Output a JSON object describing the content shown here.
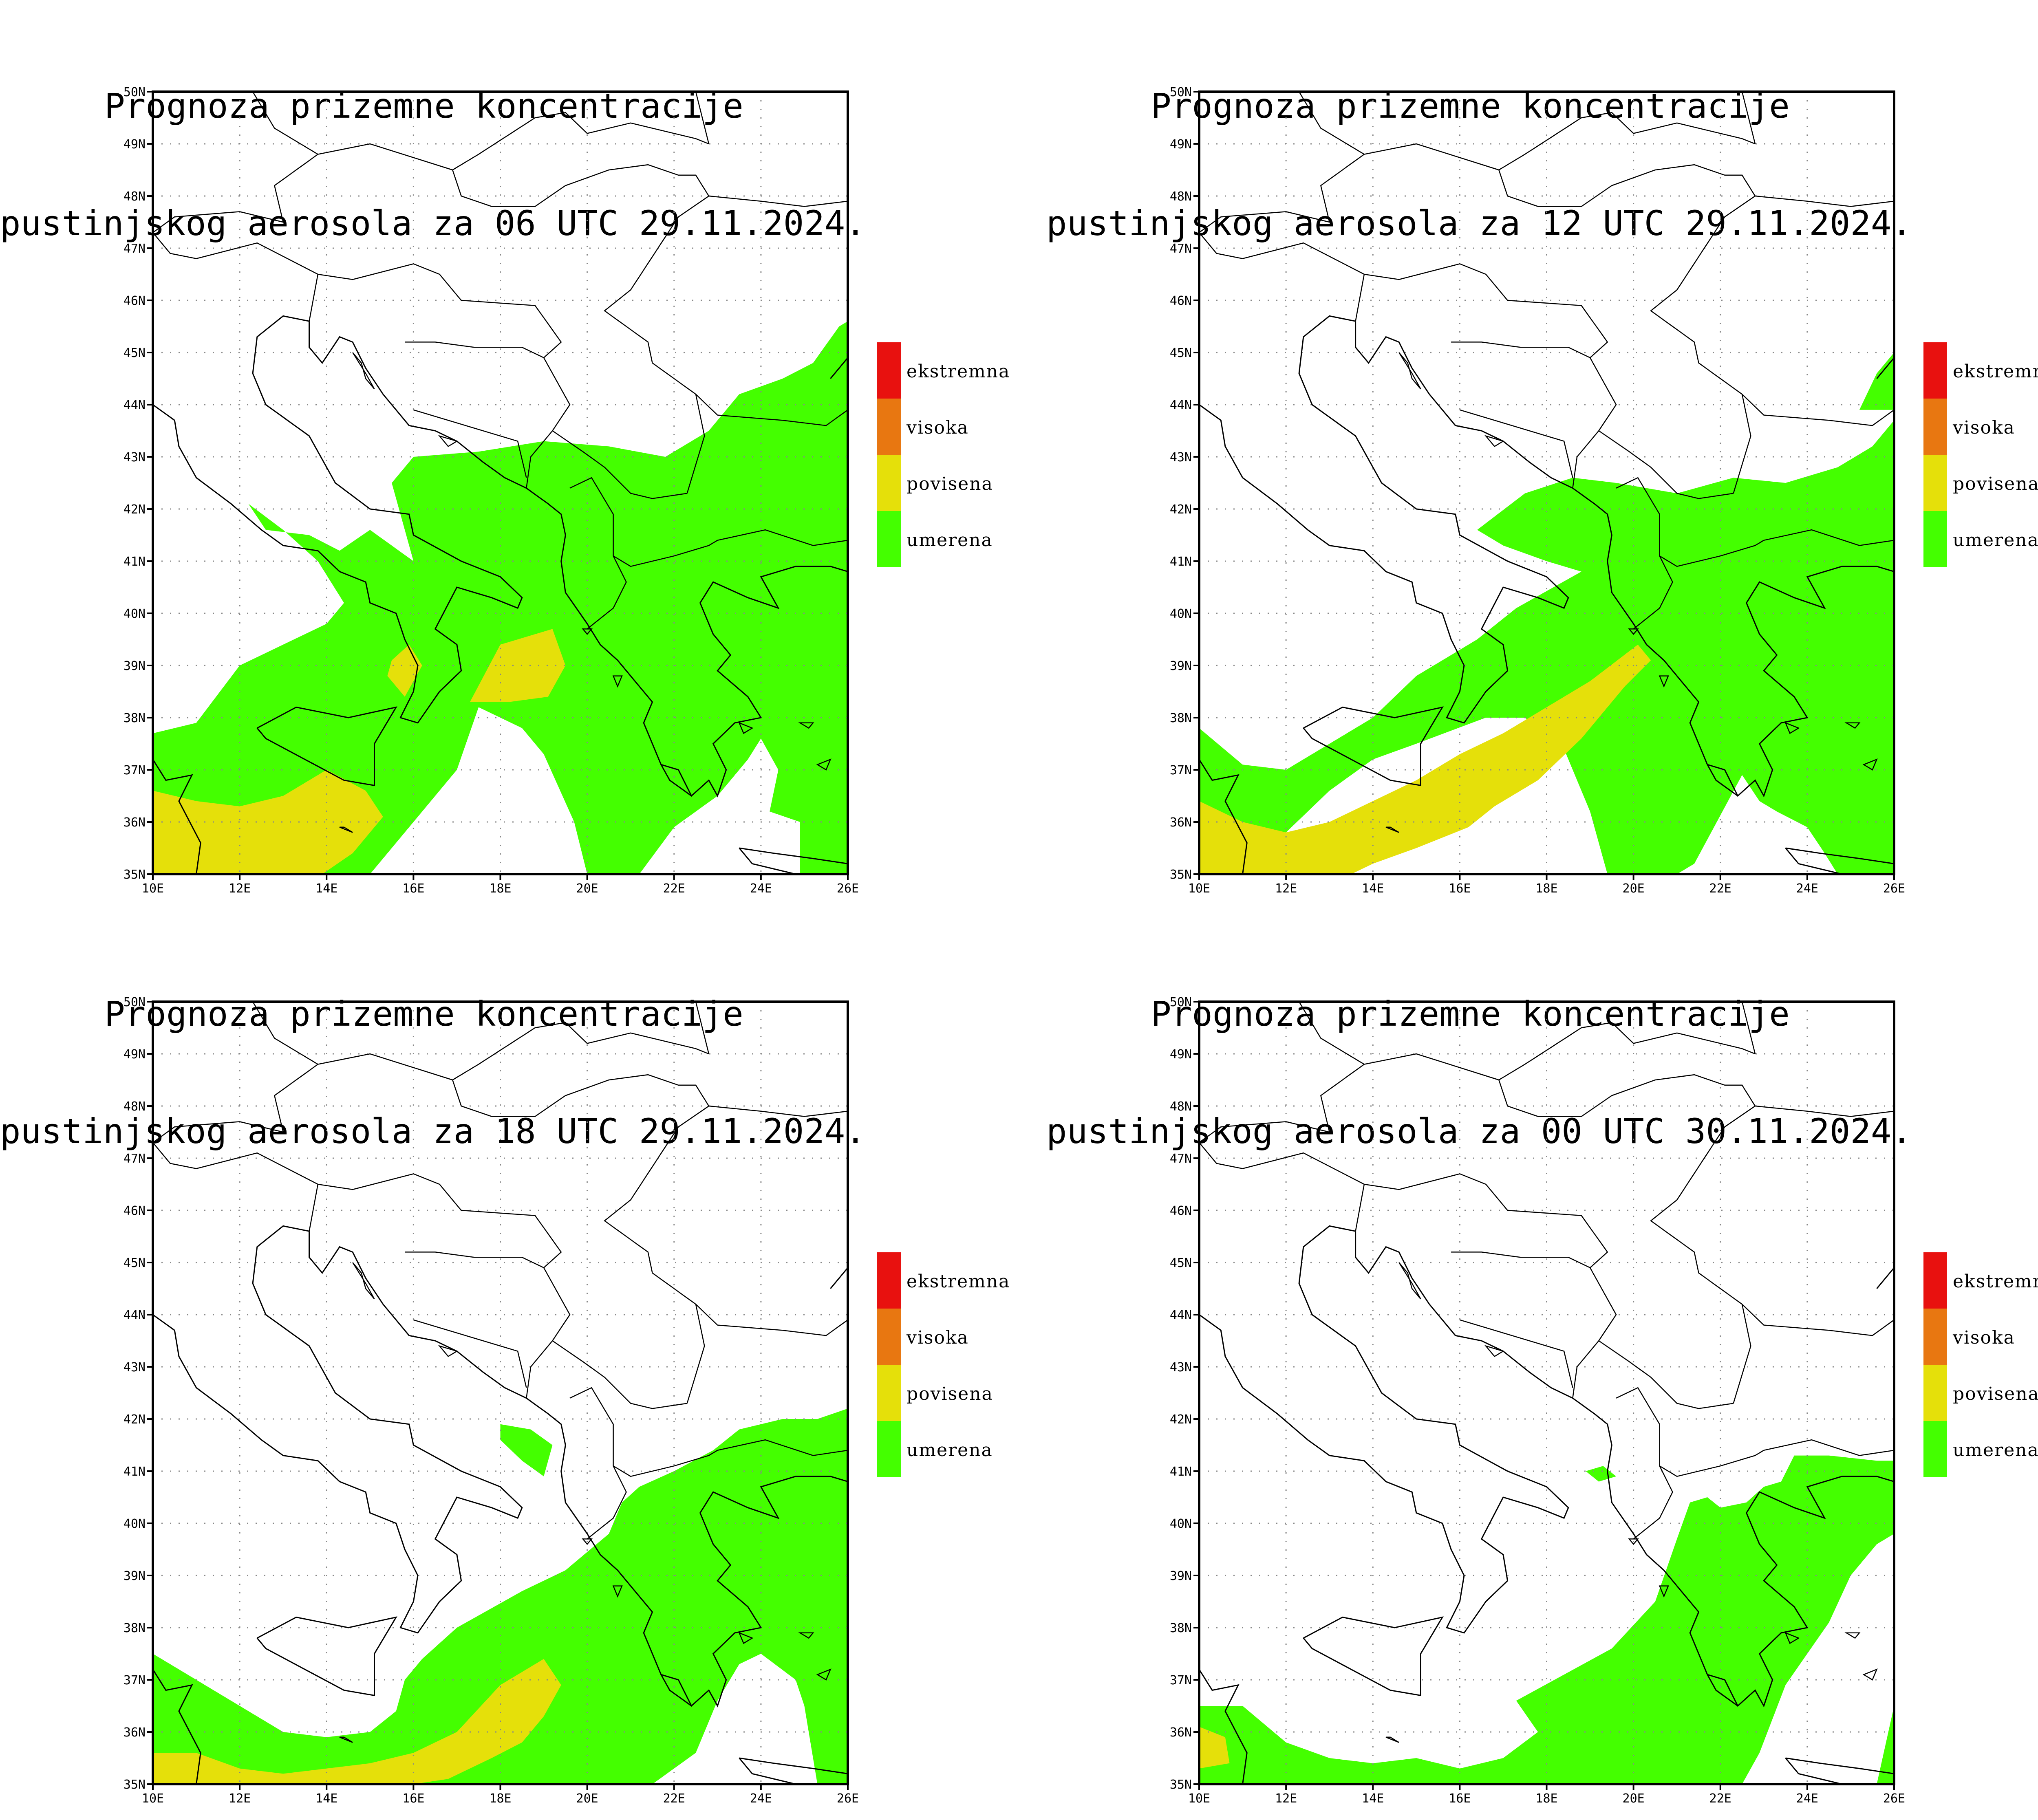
{
  "panels": [
    {
      "title_line1": "Prognoza prizemne koncentracije",
      "title_line2": "pustinjskog aerosola za 06 UTC 29.11.2024."
    },
    {
      "title_line1": "Prognoza prizemne koncentracije",
      "title_line2": "pustinjskog aerosola za 12 UTC 29.11.2024."
    },
    {
      "title_line1": "Prognoza prizemne koncentracije",
      "title_line2": "pustinjskog aerosola za 18 UTC 29.11.2024."
    },
    {
      "title_line1": "Prognoza prizemne koncentracije",
      "title_line2": "pustinjskog aerosola za 00 UTC 30.11.2024."
    }
  ],
  "legend": [
    {
      "label": "ekstremna",
      "color": "#e8110f"
    },
    {
      "label": "visoka",
      "color": "#e87711"
    },
    {
      "label": "povisena",
      "color": "#e5e00a"
    },
    {
      "label": "umerena",
      "color": "#44ff00"
    }
  ],
  "axes": {
    "lat_labels": [
      "35N",
      "36N",
      "37N",
      "38N",
      "39N",
      "40N",
      "41N",
      "42N",
      "43N",
      "44N",
      "45N",
      "46N",
      "47N",
      "48N",
      "49N",
      "50N"
    ],
    "lon_labels": [
      "10E",
      "12E",
      "14E",
      "16E",
      "18E",
      "20E",
      "22E",
      "24E",
      "26E"
    ],
    "lat_range": [
      35,
      50
    ],
    "lon_range": [
      10,
      26
    ],
    "grid": "dotted, every 2 degrees"
  },
  "colors": {
    "land_border": "#000000",
    "grid": "#888888",
    "background": "#ffffff"
  }
}
